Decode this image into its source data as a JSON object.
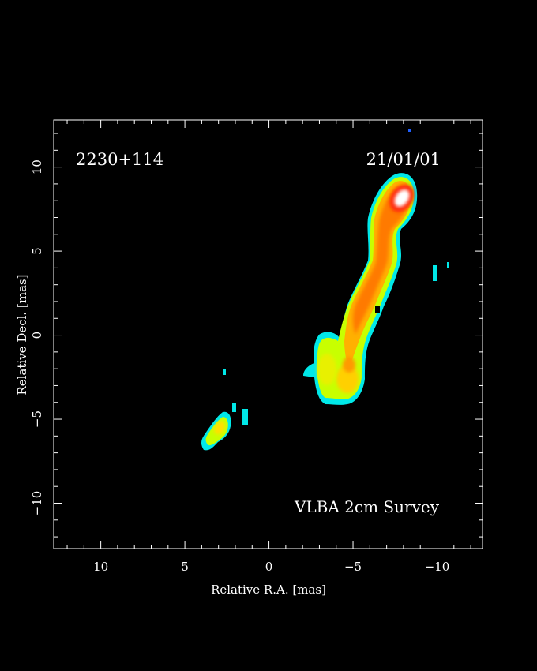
{
  "chart_data": {
    "type": "heatmap",
    "source_name": "2230+114",
    "date": "21/01/01",
    "annotation": "VLBA 2cm Survey",
    "xlabel": "Relative R.A. [mas]",
    "ylabel": "Relative Decl. [mas]",
    "xlim": [
      12.8,
      -12.7
    ],
    "ylim": [
      -12.7,
      12.8
    ],
    "x_ticks": [
      10,
      5,
      0,
      -5,
      -10
    ],
    "x_tick_labels": [
      "10",
      "5",
      "0",
      "−5",
      "−10"
    ],
    "y_ticks": [
      10,
      5,
      0,
      -5,
      -10
    ],
    "y_tick_labels": [
      "10",
      "5",
      "0",
      "−5",
      "−10"
    ],
    "colormap": [
      "#00e8e8",
      "#c8ff00",
      "#ffd000",
      "#ff7a00",
      "#ff2a10",
      "#ffffff"
    ],
    "components": [
      {
        "name": "core",
        "ra": -8.0,
        "dec": 8.1,
        "level": 5
      },
      {
        "name": "jet-upper",
        "ra": -7.4,
        "dec": 5.5,
        "level": 3
      },
      {
        "name": "jet-mid",
        "ra": -6.3,
        "dec": 2.3,
        "level": 3
      },
      {
        "name": "jet-lower",
        "ra": -5.2,
        "dec": -0.7,
        "level": 3
      },
      {
        "name": "knot-A",
        "ra": -4.5,
        "dec": -2.8,
        "level": 2
      },
      {
        "name": "knot-B",
        "ra": -3.5,
        "dec": -2.0,
        "level": 2
      },
      {
        "name": "outer-component",
        "ra": 3.1,
        "dec": -5.9,
        "level": 2
      },
      {
        "name": "patch-1",
        "ra": 1.3,
        "dec": -4.9,
        "level": 0
      },
      {
        "name": "patch-2",
        "ra": 2.0,
        "dec": -4.3,
        "level": 0
      },
      {
        "name": "patch-3",
        "ra": -10.0,
        "dec": 3.4,
        "level": 0
      },
      {
        "name": "patch-4",
        "ra": -10.8,
        "dec": 4.1,
        "level": 0
      },
      {
        "name": "patch-5",
        "ra": 2.6,
        "dec": -2.3,
        "level": 0
      }
    ]
  }
}
